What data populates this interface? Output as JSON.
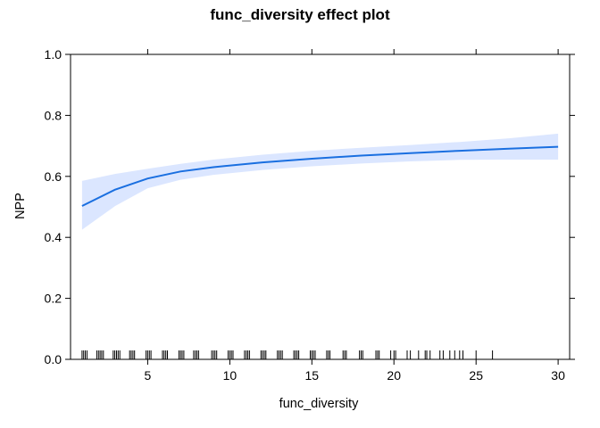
{
  "chart_data": {
    "type": "line",
    "title": "func_diversity effect plot",
    "xlabel": "func_diversity",
    "ylabel": "NPP",
    "xlim": [
      0.3,
      30.7
    ],
    "ylim": [
      0,
      1
    ],
    "x_ticks": [
      5,
      10,
      15,
      20,
      25,
      30
    ],
    "y_ticks": [
      0.0,
      0.2,
      0.4,
      0.6,
      0.8,
      1.0
    ],
    "x_tick_labels": [
      "5",
      "10",
      "15",
      "20",
      "25",
      "30"
    ],
    "y_tick_labels": [
      "0.0",
      "0.2",
      "0.4",
      "0.6",
      "0.8",
      "1.0"
    ],
    "grid": false,
    "series": [
      {
        "x": [
          1,
          3,
          5,
          7,
          9,
          12,
          15,
          18,
          21,
          24,
          27,
          30
        ],
        "y": [
          0.503,
          0.556,
          0.593,
          0.616,
          0.63,
          0.646,
          0.658,
          0.668,
          0.676,
          0.684,
          0.691,
          0.697
        ],
        "lower": [
          0.425,
          0.502,
          0.561,
          0.589,
          0.605,
          0.621,
          0.633,
          0.642,
          0.649,
          0.654,
          0.655,
          0.655
        ],
        "upper": [
          0.585,
          0.608,
          0.625,
          0.641,
          0.655,
          0.671,
          0.684,
          0.694,
          0.703,
          0.713,
          0.725,
          0.74
        ]
      }
    ],
    "rug_x": [
      1.0,
      1.1,
      1.2,
      1.3,
      1.9,
      2.0,
      2.1,
      2.2,
      2.3,
      2.9,
      3.0,
      3.1,
      3.2,
      3.3,
      3.9,
      4.0,
      4.1,
      4.2,
      4.9,
      5.0,
      5.1,
      5.2,
      5.9,
      6.0,
      6.1,
      6.2,
      6.9,
      7.0,
      7.1,
      7.2,
      7.8,
      7.9,
      8.0,
      8.1,
      8.9,
      9.0,
      9.1,
      9.2,
      9.9,
      10.0,
      10.1,
      10.2,
      10.9,
      11.0,
      11.1,
      11.2,
      11.9,
      12.0,
      12.1,
      12.2,
      12.9,
      13.0,
      13.1,
      13.2,
      13.9,
      14.0,
      14.1,
      14.2,
      14.9,
      15.0,
      15.1,
      15.2,
      15.9,
      16.0,
      16.1,
      16.9,
      17.0,
      17.1,
      17.9,
      18.0,
      18.1,
      18.9,
      19.0,
      19.1,
      19.8,
      20.0,
      20.1,
      20.8,
      21.0,
      21.5,
      21.9,
      22.0,
      22.2,
      22.8,
      23.0,
      23.4,
      23.7,
      24.0,
      24.2,
      25.0,
      26.0
    ],
    "colors": {
      "line": "#1a6fe0",
      "band": "#dbe6ff",
      "axis": "#000000",
      "rug": "#000000"
    }
  }
}
